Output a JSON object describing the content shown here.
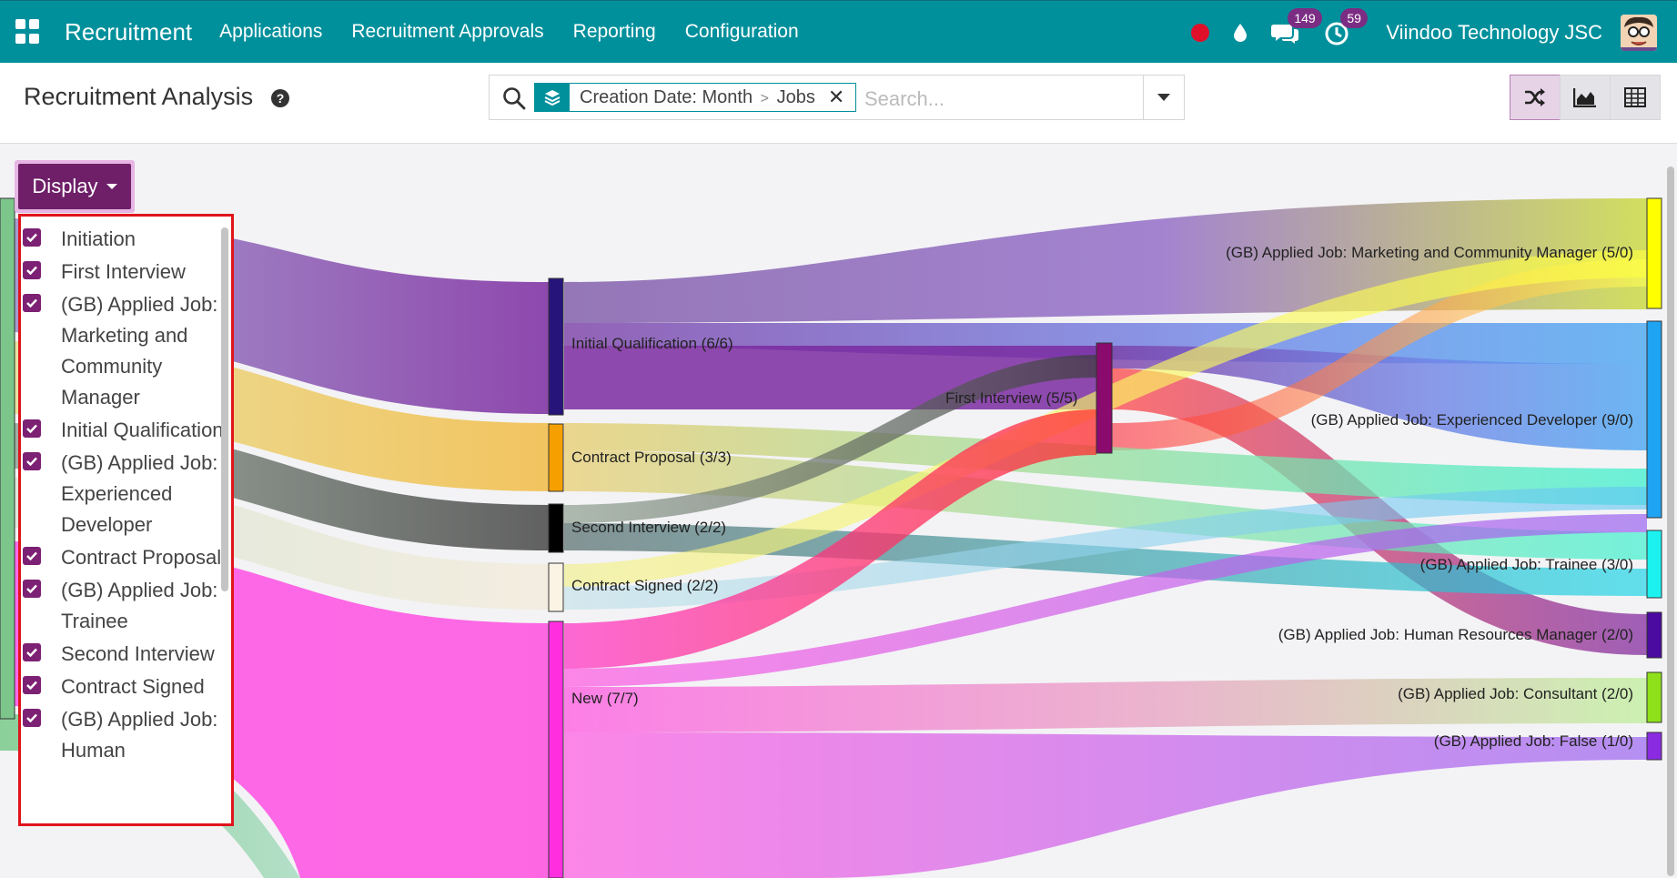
{
  "navbar": {
    "brand": "Recruitment",
    "menu": [
      "Applications",
      "Recruitment Approvals",
      "Reporting",
      "Configuration"
    ],
    "messages_count": "149",
    "activities_count": "59",
    "company": "Viindoo Technology JSC",
    "accent_color": "#00909c"
  },
  "control_panel": {
    "title": "Recruitment Analysis",
    "search": {
      "facet_first": "Creation Date: Month",
      "facet_separator": ">",
      "facet_second": "Jobs",
      "placeholder": "Search..."
    },
    "views": [
      "sankey-icon",
      "chart-area-icon",
      "table-icon"
    ]
  },
  "display": {
    "button_label": "Display",
    "items": [
      {
        "label": "Initiation",
        "checked": true
      },
      {
        "label": "First Interview",
        "checked": true
      },
      {
        "label": "(GB) Applied Job: Marketing and Community Manager",
        "checked": true
      },
      {
        "label": "Initial Qualification",
        "checked": true
      },
      {
        "label": "(GB) Applied Job: Experienced Developer",
        "checked": true
      },
      {
        "label": "Contract Proposal",
        "checked": true
      },
      {
        "label": "(GB) Applied Job: Trainee",
        "checked": true
      },
      {
        "label": "Second Interview",
        "checked": true
      },
      {
        "label": "Contract Signed",
        "checked": true
      },
      {
        "label": "(GB) Applied Job: Human",
        "checked": true
      }
    ]
  },
  "sankey": {
    "stage_nodes": [
      {
        "label": "Initial Qualification (6/6)",
        "color": "#27147a"
      },
      {
        "label": "Contract Proposal (3/3)",
        "color": "#f5a000"
      },
      {
        "label": "Second Interview (2/2)",
        "color": "#000000"
      },
      {
        "label": "Contract Signed (2/2)",
        "color": "#fbf3e4"
      },
      {
        "label": "New (7/7)",
        "color": "#ff2fe0"
      },
      {
        "label": "First Interview (5/5)",
        "color": "#8a0a6e"
      }
    ],
    "job_nodes": [
      {
        "label": "(GB) Applied Job: Marketing and Community Manager (5/0)",
        "color": "#ffff00"
      },
      {
        "label": "(GB) Applied Job: Experienced Developer (9/0)",
        "color": "#1fa3f3"
      },
      {
        "label": "(GB) Applied Job: Trainee (3/0)",
        "color": "#1bf2f0"
      },
      {
        "label": "(GB) Applied Job: Human Resources Manager (2/0)",
        "color": "#4b0aa0"
      },
      {
        "label": "(GB) Applied Job: Consultant (2/0)",
        "color": "#8ee01a"
      },
      {
        "label": "(GB) Applied Job: False (1/0)",
        "color": "#8a2be2"
      }
    ]
  }
}
